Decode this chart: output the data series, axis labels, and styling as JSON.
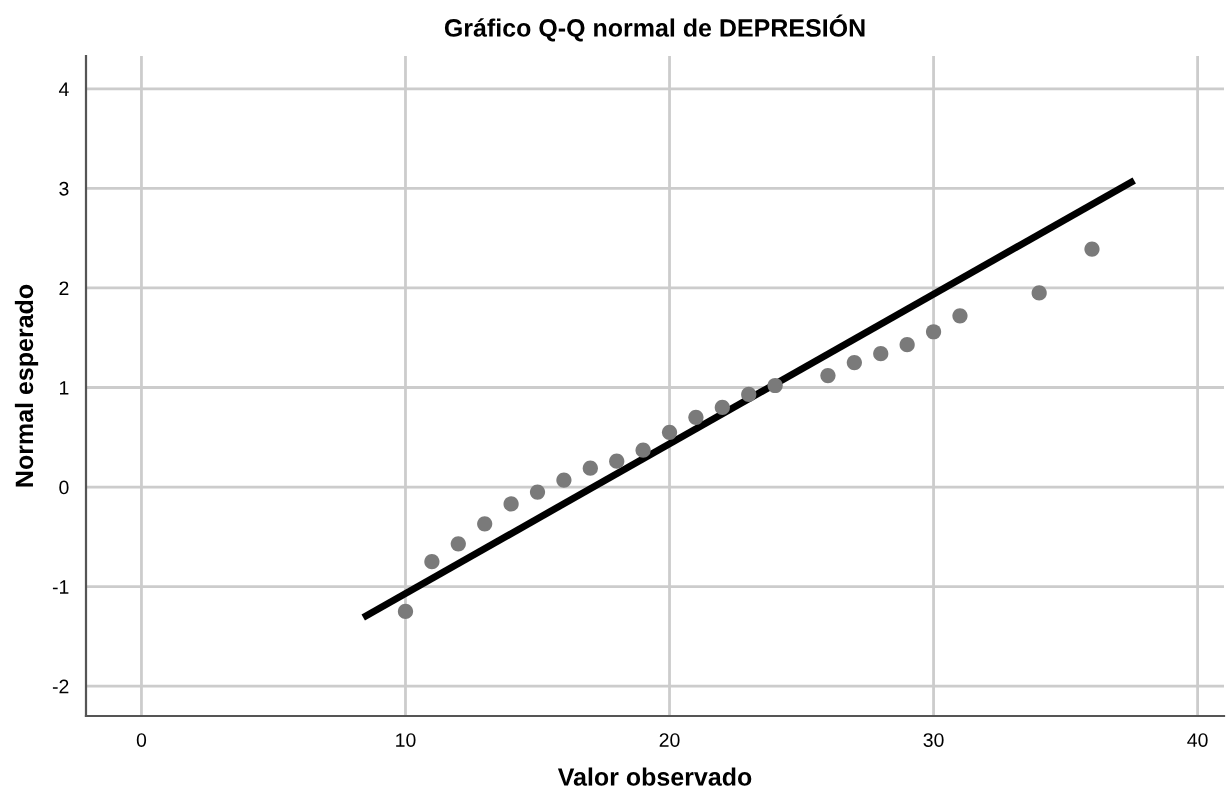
{
  "chart_data": {
    "type": "scatter",
    "title": "Gráfico Q-Q normal de DEPRESIÓN",
    "xlabel": "Valor observado",
    "ylabel": "Normal esperado",
    "xlim": [
      -2.1,
      41
    ],
    "ylim": [
      -2.3,
      4.33
    ],
    "xticks": [
      0,
      10,
      20,
      30,
      40
    ],
    "yticks": [
      -2,
      -1,
      0,
      1,
      2,
      3,
      4
    ],
    "grid": true,
    "series": [
      {
        "marker": "circle",
        "color": "#7a7a7a",
        "x": [
          10,
          11,
          12,
          13,
          14,
          15,
          16,
          17,
          18,
          19,
          20,
          21,
          22,
          23,
          24,
          26,
          27,
          28,
          29,
          30,
          31,
          34,
          36
        ],
        "values": [
          -1.25,
          -0.75,
          -0.57,
          -0.37,
          -0.17,
          -0.05,
          0.07,
          0.19,
          0.26,
          0.37,
          0.55,
          0.7,
          0.8,
          0.93,
          1.02,
          1.12,
          1.25,
          1.34,
          1.43,
          1.56,
          1.72,
          1.95,
          2.39
        ]
      },
      {
        "type": "line",
        "marker": "none",
        "color": "#000000",
        "x": [
          8.4,
          37.6
        ],
        "values": [
          -1.31,
          3.08
        ]
      }
    ]
  }
}
